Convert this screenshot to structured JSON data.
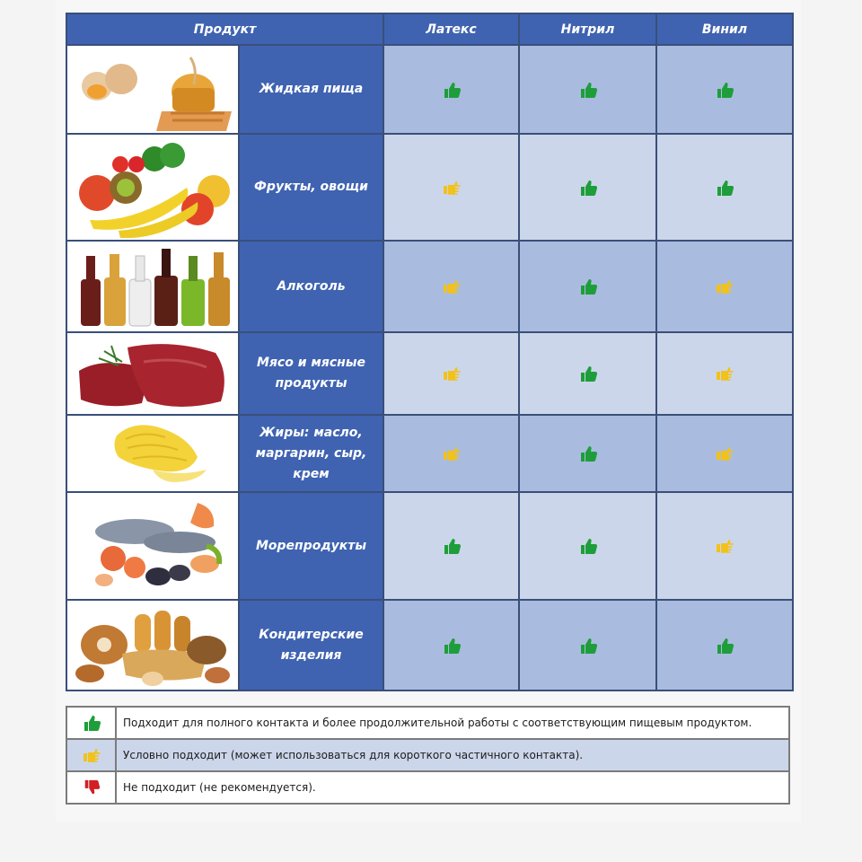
{
  "header": {
    "product": "Продукт",
    "latex": "Латекс",
    "nitrile": "Нитрил",
    "vinyl": "Винил"
  },
  "rows": [
    {
      "name": "Жидкая пища",
      "image": "liquid-food-image",
      "latex": "suitable",
      "nitrile": "suitable",
      "vinyl": "suitable"
    },
    {
      "name": "Фрукты, овощи",
      "image": "fruits-vegetables-image",
      "latex": "conditional",
      "nitrile": "suitable",
      "vinyl": "suitable"
    },
    {
      "name": "Алкоголь",
      "image": "alcohol-bottles-image",
      "latex": "conditional",
      "nitrile": "suitable",
      "vinyl": "conditional"
    },
    {
      "name": "Мясо и мясные продукты",
      "image": "meat-image",
      "latex": "conditional",
      "nitrile": "suitable",
      "vinyl": "conditional"
    },
    {
      "name": "Жиры: масло, маргарин, сыр, крем",
      "image": "butter-image",
      "latex": "conditional",
      "nitrile": "suitable",
      "vinyl": "conditional"
    },
    {
      "name": "Морепродукты",
      "image": "seafood-image",
      "latex": "suitable",
      "nitrile": "suitable",
      "vinyl": "conditional"
    },
    {
      "name": "Кондитерские изделия",
      "image": "pastry-image",
      "latex": "suitable",
      "nitrile": "suitable",
      "vinyl": "suitable"
    }
  ],
  "legend": {
    "suitable": "Подходит для полного контакта и более продолжительной работы с соответствующим пищевым продуктом.",
    "conditional": "Условно подходит (может использоваться для короткого частичного контакта).",
    "unsuitable": "Не подходит (не рекомендуется)."
  },
  "colors": {
    "header_blue": "#3f63b1",
    "cell_dark": "#a9bcdf",
    "cell_light": "#ccd6ea",
    "suitable_green": "#1e9e3a",
    "conditional_yellow": "#f2c21b",
    "unsuitable_red": "#d11f24"
  }
}
